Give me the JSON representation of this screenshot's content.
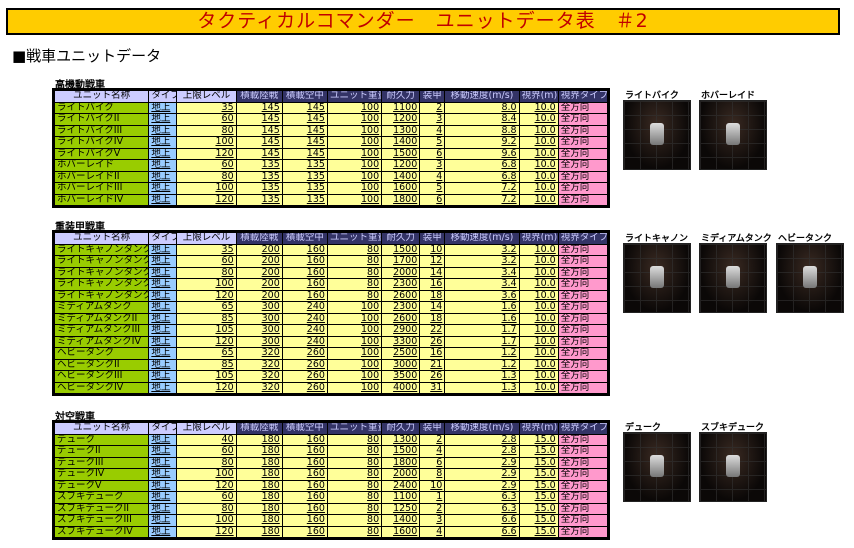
{
  "title": "タクティカルコマンダー　ユニットデータ表　＃2",
  "section": "■戦車ユニットデータ",
  "headers": [
    "ユニット名称",
    "タイプ",
    "上限レベル",
    "積載陸戦",
    "積載空中",
    "ユニット重量",
    "耐久力",
    "装甲",
    "移動速度(m/s)",
    "視界(m)",
    "視界タイプ"
  ],
  "tables": [
    {
      "label": "高機動戦車",
      "images": [
        "ライトバイク",
        "ホバーレイド"
      ],
      "rows": [
        [
          "ライトバイク",
          "地上",
          "35",
          "145",
          "145",
          "100",
          "1100",
          "2",
          "8.0",
          "10.0",
          "全方向"
        ],
        [
          "ライトバイクII",
          "地上",
          "60",
          "145",
          "145",
          "100",
          "1200",
          "3",
          "8.4",
          "10.0",
          "全方向"
        ],
        [
          "ライトバイクIII",
          "地上",
          "80",
          "145",
          "145",
          "100",
          "1300",
          "4",
          "8.8",
          "10.0",
          "全方向"
        ],
        [
          "ライトバイクIV",
          "地上",
          "100",
          "145",
          "145",
          "100",
          "1400",
          "5",
          "9.2",
          "10.0",
          "全方向"
        ],
        [
          "ライトバイクV",
          "地上",
          "120",
          "145",
          "145",
          "100",
          "1500",
          "6",
          "9.6",
          "10.0",
          "全方向"
        ],
        [
          "ホバーレイド",
          "地上",
          "60",
          "135",
          "135",
          "100",
          "1200",
          "3",
          "6.8",
          "10.0",
          "全方向"
        ],
        [
          "ホバーレイドII",
          "地上",
          "80",
          "135",
          "135",
          "100",
          "1400",
          "4",
          "6.8",
          "10.0",
          "全方向"
        ],
        [
          "ホバーレイドIII",
          "地上",
          "100",
          "135",
          "135",
          "100",
          "1600",
          "5",
          "7.2",
          "10.0",
          "全方向"
        ],
        [
          "ホバーレイドIV",
          "地上",
          "120",
          "135",
          "135",
          "100",
          "1800",
          "6",
          "7.2",
          "10.0",
          "全方向"
        ]
      ]
    },
    {
      "label": "重装甲戦車",
      "images": [
        "ライトキャノン",
        "ミディアムタンク",
        "ヘビータンク"
      ],
      "rows": [
        [
          "ライトキャノンタンク",
          "地上",
          "35",
          "200",
          "160",
          "80",
          "1500",
          "10",
          "3.2",
          "10.0",
          "全方向"
        ],
        [
          "ライトキャノンタンクII",
          "地上",
          "60",
          "200",
          "160",
          "80",
          "1700",
          "12",
          "3.2",
          "10.0",
          "全方向"
        ],
        [
          "ライトキャノンタンクIII",
          "地上",
          "80",
          "200",
          "160",
          "80",
          "2000",
          "14",
          "3.4",
          "10.0",
          "全方向"
        ],
        [
          "ライトキャノンタンクIV",
          "地上",
          "100",
          "200",
          "160",
          "80",
          "2300",
          "16",
          "3.4",
          "10.0",
          "全方向"
        ],
        [
          "ライトキャノンタンクV",
          "地上",
          "120",
          "200",
          "160",
          "80",
          "2600",
          "18",
          "3.6",
          "10.0",
          "全方向"
        ],
        [
          "ミディアムタンク",
          "地上",
          "65",
          "300",
          "240",
          "100",
          "2300",
          "14",
          "1.6",
          "10.0",
          "全方向"
        ],
        [
          "ミディアムタンクII",
          "地上",
          "85",
          "300",
          "240",
          "100",
          "2600",
          "18",
          "1.6",
          "10.0",
          "全方向"
        ],
        [
          "ミディアムタンクIII",
          "地上",
          "105",
          "300",
          "240",
          "100",
          "2900",
          "22",
          "1.7",
          "10.0",
          "全方向"
        ],
        [
          "ミディアムタンクIV",
          "地上",
          "120",
          "300",
          "240",
          "100",
          "3300",
          "26",
          "1.7",
          "10.0",
          "全方向"
        ],
        [
          "ヘビータンク",
          "地上",
          "65",
          "320",
          "260",
          "100",
          "2500",
          "16",
          "1.2",
          "10.0",
          "全方向"
        ],
        [
          "ヘビータンクII",
          "地上",
          "85",
          "320",
          "260",
          "100",
          "3000",
          "21",
          "1.2",
          "10.0",
          "全方向"
        ],
        [
          "ヘビータンクIII",
          "地上",
          "105",
          "320",
          "260",
          "100",
          "3500",
          "26",
          "1.3",
          "10.0",
          "全方向"
        ],
        [
          "ヘビータンクIV",
          "地上",
          "120",
          "320",
          "260",
          "100",
          "4000",
          "31",
          "1.3",
          "10.0",
          "全方向"
        ]
      ]
    },
    {
      "label": "対空戦車",
      "images": [
        "デューク",
        "スブキデューク"
      ],
      "rows": [
        [
          "デューク",
          "地上",
          "40",
          "180",
          "160",
          "80",
          "1300",
          "2",
          "2.8",
          "15.0",
          "全方向"
        ],
        [
          "デュークII",
          "地上",
          "60",
          "180",
          "160",
          "80",
          "1500",
          "4",
          "2.8",
          "15.0",
          "全方向"
        ],
        [
          "デュークIII",
          "地上",
          "80",
          "180",
          "160",
          "80",
          "1800",
          "6",
          "2.9",
          "15.0",
          "全方向"
        ],
        [
          "デュークIV",
          "地上",
          "100",
          "180",
          "160",
          "80",
          "2000",
          "8",
          "2.9",
          "15.0",
          "全方向"
        ],
        [
          "デュークV",
          "地上",
          "120",
          "180",
          "160",
          "80",
          "2400",
          "10",
          "2.9",
          "15.0",
          "全方向"
        ],
        [
          "スブキデューク",
          "地上",
          "60",
          "180",
          "160",
          "80",
          "1100",
          "1",
          "6.3",
          "15.0",
          "全方向"
        ],
        [
          "スブキデュークII",
          "地上",
          "80",
          "180",
          "160",
          "80",
          "1250",
          "2",
          "6.3",
          "15.0",
          "全方向"
        ],
        [
          "スブキデュークIII",
          "地上",
          "100",
          "180",
          "160",
          "80",
          "1400",
          "3",
          "6.6",
          "15.0",
          "全方向"
        ],
        [
          "スブキデュークIV",
          "地上",
          "120",
          "180",
          "160",
          "80",
          "1600",
          "4",
          "6.6",
          "15.0",
          "全方向"
        ]
      ]
    }
  ]
}
